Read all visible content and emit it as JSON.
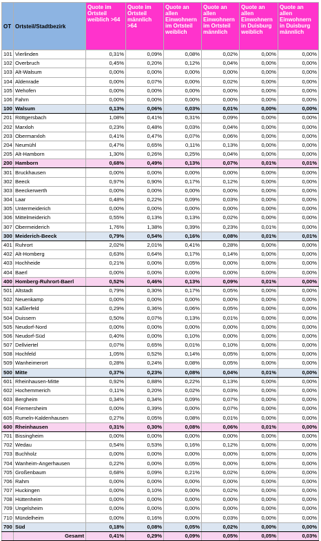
{
  "table": {
    "header": [
      "OT",
      "Ortsteil/Stadtbezirk",
      "Quote im Ortsteil weiblich >64",
      "Quote im Ortsteil männlich >64",
      "Quote an allen Einwohnern im Ortsteil weiblich",
      "Quote an allen Einwohnern im Ortsteil männlich",
      "Quote an allen Einwohnern in Duisburg weiblich",
      "Quote an allen Einwohnern in Duisburg männlich"
    ],
    "rows": [
      [
        "101",
        "Vierlinden",
        "0,31%",
        "0,09%",
        "0,08%",
        "0,02%",
        "0,00%",
        "0,00%"
      ],
      [
        "102",
        "Overbruch",
        "0,45%",
        "0,20%",
        "0,12%",
        "0,04%",
        "0,00%",
        "0,00%"
      ],
      [
        "103",
        "Alt-Walsum",
        "0,00%",
        "0,00%",
        "0,00%",
        "0,00%",
        "0,00%",
        "0,00%"
      ],
      [
        "104",
        "Aldenrade",
        "0,00%",
        "0,07%",
        "0,00%",
        "0,02%",
        "0,00%",
        "0,00%"
      ],
      [
        "105",
        "Wehofen",
        "0,00%",
        "0,00%",
        "0,00%",
        "0,00%",
        "0,00%",
        "0,00%"
      ],
      [
        "106",
        "Fahrn",
        "0,00%",
        "0,00%",
        "0,00%",
        "0,00%",
        "0,00%",
        "0,00%"
      ],
      [
        "100",
        "Walsum",
        "0,13%",
        "0,06%",
        "0,03%",
        "0,01%",
        "0,00%",
        "0,00%"
      ],
      [
        "201",
        "Röttgersbach",
        "1,08%",
        "0,41%",
        "0,31%",
        "0,09%",
        "0,00%",
        "0,00%"
      ],
      [
        "202",
        "Marxloh",
        "0,23%",
        "0,48%",
        "0,03%",
        "0,04%",
        "0,00%",
        "0,00%"
      ],
      [
        "203",
        "Obermarxloh",
        "0,41%",
        "0,47%",
        "0,07%",
        "0,06%",
        "0,00%",
        "0,00%"
      ],
      [
        "204",
        "Neumühl",
        "0,47%",
        "0,65%",
        "0,11%",
        "0,13%",
        "0,00%",
        "0,00%"
      ],
      [
        "205",
        "Alt-Hamborn",
        "1,30%",
        "0,26%",
        "0,25%",
        "0,04%",
        "0,00%",
        "0,00%"
      ],
      [
        "200",
        "Hamborn",
        "0,68%",
        "0,49%",
        "0,13%",
        "0,07%",
        "0,01%",
        "0,01%"
      ],
      [
        "301",
        "Bruckhausen",
        "0,00%",
        "0,00%",
        "0,00%",
        "0,00%",
        "0,00%",
        "0,00%"
      ],
      [
        "302",
        "Beeck",
        "0,97%",
        "0,90%",
        "0,17%",
        "0,12%",
        "0,00%",
        "0,00%"
      ],
      [
        "303",
        "Beeckerwerth",
        "0,00%",
        "0,00%",
        "0,00%",
        "0,00%",
        "0,00%",
        "0,00%"
      ],
      [
        "304",
        "Laar",
        "0,48%",
        "0,22%",
        "0,09%",
        "0,03%",
        "0,00%",
        "0,00%"
      ],
      [
        "305",
        "Untermeiderich",
        "0,00%",
        "0,00%",
        "0,00%",
        "0,00%",
        "0,00%",
        "0,00%"
      ],
      [
        "306",
        "Mittelmeiderich",
        "0,55%",
        "0,13%",
        "0,13%",
        "0,02%",
        "0,00%",
        "0,00%"
      ],
      [
        "307",
        "Obermeiderich",
        "1,76%",
        "1,38%",
        "0,39%",
        "0,23%",
        "0,01%",
        "0,00%"
      ],
      [
        "300",
        "Meiderich-Beeck",
        "0,79%",
        "0,54%",
        "0,16%",
        "0,08%",
        "0,01%",
        "0,01%"
      ],
      [
        "401",
        "Ruhrort",
        "2,02%",
        "2,01%",
        "0,41%",
        "0,28%",
        "0,00%",
        "0,00%"
      ],
      [
        "402",
        "Alt-Homberg",
        "0,63%",
        "0,64%",
        "0,17%",
        "0,14%",
        "0,00%",
        "0,00%"
      ],
      [
        "403",
        "Hochheide",
        "0,21%",
        "0,00%",
        "0,05%",
        "0,00%",
        "0,00%",
        "0,00%"
      ],
      [
        "404",
        "Baerl",
        "0,00%",
        "0,00%",
        "0,00%",
        "0,00%",
        "0,00%",
        "0,00%"
      ],
      [
        "400",
        "Homberg-Ruhrort-Baerl",
        "0,52%",
        "0,46%",
        "0,13%",
        "0,09%",
        "0,01%",
        "0,00%"
      ],
      [
        "501",
        "Altstadt",
        "0,79%",
        "0,30%",
        "0,17%",
        "0,05%",
        "0,00%",
        "0,00%"
      ],
      [
        "502",
        "Neuenkamp",
        "0,00%",
        "0,00%",
        "0,00%",
        "0,00%",
        "0,00%",
        "0,00%"
      ],
      [
        "503",
        "Kaßlerfeld",
        "0,29%",
        "0,36%",
        "0,06%",
        "0,05%",
        "0,00%",
        "0,00%"
      ],
      [
        "504",
        "Duissern",
        "0,50%",
        "0,07%",
        "0,13%",
        "0,01%",
        "0,00%",
        "0,00%"
      ],
      [
        "505",
        "Neudorf-Nord",
        "0,00%",
        "0,00%",
        "0,00%",
        "0,00%",
        "0,00%",
        "0,00%"
      ],
      [
        "506",
        "Neudorf-Süd",
        "0,40%",
        "0,00%",
        "0,10%",
        "0,00%",
        "0,00%",
        "0,00%"
      ],
      [
        "507",
        "Dellviertel",
        "0,07%",
        "0,65%",
        "0,01%",
        "0,10%",
        "0,00%",
        "0,00%"
      ],
      [
        "508",
        "Hochfeld",
        "1,05%",
        "0,52%",
        "0,14%",
        "0,05%",
        "0,00%",
        "0,00%"
      ],
      [
        "509",
        "Wanheimerort",
        "0,28%",
        "0,24%",
        "0,08%",
        "0,05%",
        "0,00%",
        "0,00%"
      ],
      [
        "500",
        "Mitte",
        "0,37%",
        "0,23%",
        "0,08%",
        "0,04%",
        "0,01%",
        "0,00%"
      ],
      [
        "601",
        "Rheinhausen-Mitte",
        "0,92%",
        "0,88%",
        "0,22%",
        "0,13%",
        "0,00%",
        "0,00%"
      ],
      [
        "602",
        "Hochemmerich",
        "0,11%",
        "0,20%",
        "0,02%",
        "0,03%",
        "0,00%",
        "0,00%"
      ],
      [
        "603",
        "Bergheim",
        "0,34%",
        "0,34%",
        "0,09%",
        "0,07%",
        "0,00%",
        "0,00%"
      ],
      [
        "604",
        "Friemersheim",
        "0,00%",
        "0,39%",
        "0,00%",
        "0,07%",
        "0,00%",
        "0,00%"
      ],
      [
        "605",
        "Rumeln-Kaldenhausen",
        "0,27%",
        "0,05%",
        "0,08%",
        "0,01%",
        "0,00%",
        "0,00%"
      ],
      [
        "600",
        "Rheinhausen",
        "0,31%",
        "0,30%",
        "0,08%",
        "0,06%",
        "0,01%",
        "0,00%"
      ],
      [
        "701",
        "Bissingheim",
        "0,00%",
        "0,00%",
        "0,00%",
        "0,00%",
        "0,00%",
        "0,00%"
      ],
      [
        "702",
        "Wedau",
        "0,54%",
        "0,53%",
        "0,16%",
        "0,12%",
        "0,00%",
        "0,00%"
      ],
      [
        "703",
        "Buchholz",
        "0,00%",
        "0,00%",
        "0,00%",
        "0,00%",
        "0,00%",
        "0,00%"
      ],
      [
        "704",
        "Wanheim-Angerhausen",
        "0,22%",
        "0,00%",
        "0,05%",
        "0,00%",
        "0,00%",
        "0,00%"
      ],
      [
        "705",
        "Großenbaum",
        "0,68%",
        "0,09%",
        "0,21%",
        "0,02%",
        "0,00%",
        "0,00%"
      ],
      [
        "706",
        "Rahm",
        "0,00%",
        "0,00%",
        "0,00%",
        "0,00%",
        "0,00%",
        "0,00%"
      ],
      [
        "707",
        "Huckingen",
        "0,00%",
        "0,10%",
        "0,00%",
        "0,02%",
        "0,00%",
        "0,00%"
      ],
      [
        "708",
        "Hüttenheim",
        "0,00%",
        "0,00%",
        "0,00%",
        "0,00%",
        "0,00%",
        "0,00%"
      ],
      [
        "709",
        "Ungelsheim",
        "0,00%",
        "0,00%",
        "0,00%",
        "0,00%",
        "0,00%",
        "0,00%"
      ],
      [
        "710",
        "Mündelheim",
        "0,00%",
        "0,16%",
        "0,00%",
        "0,03%",
        "0,00%",
        "0,00%"
      ],
      [
        "700",
        "Süd",
        "0,18%",
        "0,08%",
        "0,05%",
        "0,02%",
        "0,00%",
        "0,00%"
      ],
      [
        null,
        "Gesamt",
        "0,41%",
        "0,29%",
        "0,09%",
        "0,05%",
        "0,05%",
        "0,03%"
      ]
    ]
  }
}
